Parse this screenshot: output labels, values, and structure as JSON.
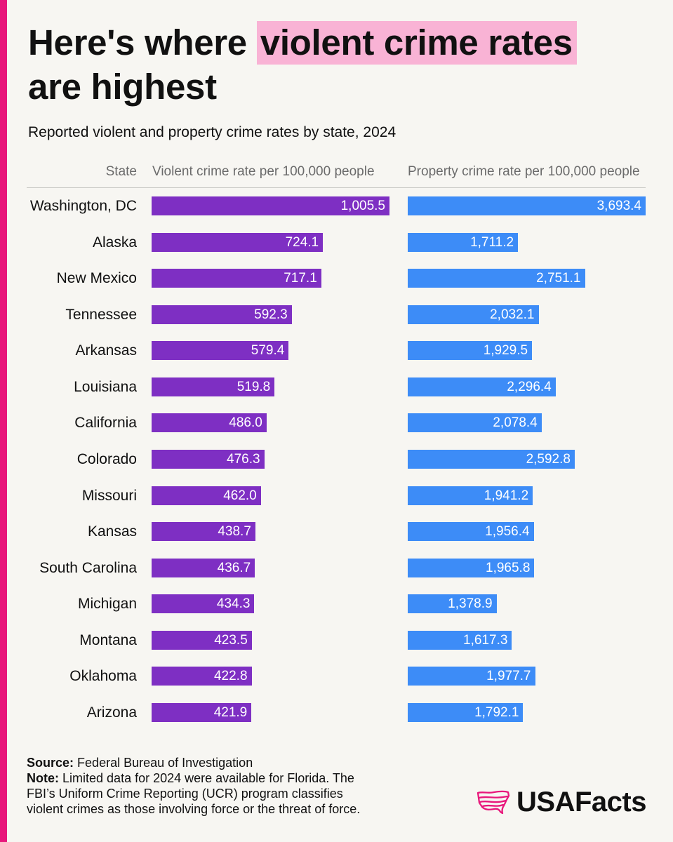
{
  "colors": {
    "background": "#f7f6f2",
    "accent_stripe": "#e8177b",
    "title_highlight": "#f9b3d5",
    "header_text": "#6b6b6b",
    "text": "#111111",
    "bar_label": "#ffffff"
  },
  "chart_data": {
    "type": "bar",
    "orientation": "horizontal",
    "title": {
      "lead": "Here's where",
      "highlight": "violent crime rates",
      "tail": "are highest"
    },
    "subtitle": "Reported violent and property crime rates by state, 2024",
    "category_label": "State",
    "categories": [
      "Washington, DC",
      "Alaska",
      "New Mexico",
      "Tennessee",
      "Arkansas",
      "Louisiana",
      "California",
      "Colorado",
      "Missouri",
      "Kansas",
      "South Carolina",
      "Michigan",
      "Montana",
      "Oklahoma",
      "Arizona"
    ],
    "series": [
      {
        "name": "Violent crime rate per 100,000 people",
        "color": "#7e2fc3",
        "values": [
          1005.5,
          724.1,
          717.1,
          592.3,
          579.4,
          519.8,
          486.0,
          476.3,
          462.0,
          438.7,
          436.7,
          434.3,
          423.5,
          422.8,
          421.9
        ],
        "labels": [
          "1,005.5",
          "724.1",
          "717.1",
          "592.3",
          "579.4",
          "519.8",
          "486.0",
          "476.3",
          "462.0",
          "438.7",
          "436.7",
          "434.3",
          "423.5",
          "422.8",
          "421.9"
        ]
      },
      {
        "name": "Property crime rate per 100,000 people",
        "color": "#3d8cf7",
        "values": [
          3693.4,
          1711.2,
          2751.1,
          2032.1,
          1929.5,
          2296.4,
          2078.4,
          2592.8,
          1941.2,
          1956.4,
          1965.8,
          1378.9,
          1617.3,
          1977.7,
          1792.1
        ],
        "labels": [
          "3,693.4",
          "1,711.2",
          "2,751.1",
          "2,032.1",
          "1,929.5",
          "2,296.4",
          "2,078.4",
          "2,592.8",
          "1,941.2",
          "1,956.4",
          "1,965.8",
          "1,378.9",
          "1,617.3",
          "1,977.7",
          "1,792.1"
        ]
      }
    ],
    "grid": false,
    "legend": "none"
  },
  "footer": {
    "source_label": "Source:",
    "source": "Federal Bureau of Investigation",
    "note_label": "Note:",
    "note_lines": [
      "Limited data for 2024 were available for Florida. The",
      "FBI’s Uniform Crime Reporting (UCR) program classifies",
      "violent crimes as those involving force or the threat of force."
    ]
  },
  "logo": {
    "text": "USAFacts",
    "icon": "usa-map-icon"
  }
}
